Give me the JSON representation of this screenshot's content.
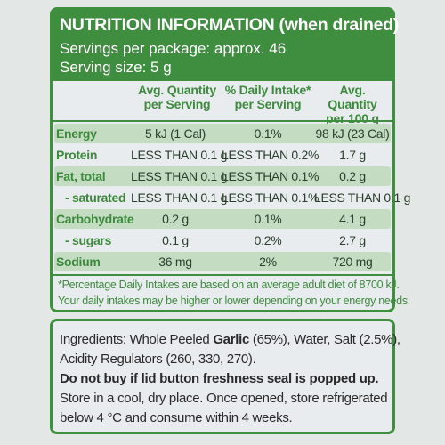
{
  "nutrition": {
    "title": "NUTRITION INFORMATION (when drained)",
    "servings_per_package": "Servings per package: approx. 46",
    "serving_size": "Serving size: 5 g",
    "columns": {
      "per_serving_1": "Avg. Quantity",
      "per_serving_2": "per Serving",
      "daily_1": "% Daily Intake*",
      "daily_2": "per Serving",
      "per100_1": "Avg. Quantity",
      "per100_2": "per 100 g"
    },
    "rows": [
      {
        "name": "Energy",
        "serving": "5 kJ (1 Cal)",
        "daily": "0.1%",
        "per100": "98 kJ (23 Cal)"
      },
      {
        "name": "Protein",
        "serving": "LESS THAN 0.1 g",
        "daily": "LESS THAN 0.2%",
        "per100": "1.7 g"
      },
      {
        "name": "Fat, total",
        "serving": "LESS THAN 0.1 g",
        "daily": "LESS THAN 0.1%",
        "per100": "0.2 g"
      },
      {
        "name": "- saturated",
        "serving": "LESS THAN 0.1 g",
        "daily": "LESS THAN 0.1%",
        "per100": "LESS THAN 0.1 g"
      },
      {
        "name": "Carbohydrate",
        "serving": "0.2 g",
        "daily": "0.1%",
        "per100": "4.1 g"
      },
      {
        "name": "- sugars",
        "serving": "0.1 g",
        "daily": "0.2%",
        "per100": "2.7 g"
      },
      {
        "name": "Sodium",
        "serving": "36 mg",
        "daily": "2%",
        "per100": "720 mg"
      }
    ],
    "footnote_1": "*Percentage Daily Intakes are based on an average adult diet of 8700 kJ.",
    "footnote_2": "Your daily intakes may be higher or lower depending on your energy needs."
  },
  "ingredients": {
    "line1_prefix": "Ingredients: Whole Peeled ",
    "line1_bold": "Garlic",
    "line1_suffix": " (65%), Water, Salt (2.5%),",
    "line2": "Acidity Regulators (260, 330, 270).",
    "warning": "Do not buy if lid button freshness seal is popped up.",
    "storage1": "Store in a cool, dry place. Once opened, store refrigerated",
    "storage2": "below 4 °C and consume within 4 weeks."
  },
  "colors": {
    "brand_green": "#3f8d3f",
    "row_shade": "#c4dcc2"
  }
}
